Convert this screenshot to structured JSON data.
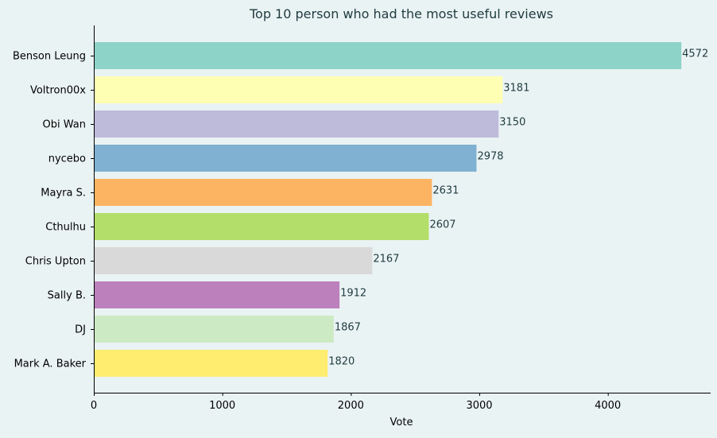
{
  "chart_data": {
    "type": "bar",
    "orientation": "horizontal",
    "title": "Top 10 person who had the most useful reviews",
    "xlabel": "Vote",
    "ylabel": "",
    "xlim": [
      0,
      4800
    ],
    "x_ticks": [
      0,
      1000,
      2000,
      3000,
      4000
    ],
    "grid": false,
    "categories": [
      "Benson Leung",
      "Voltron00x",
      "Obi Wan",
      "nycebo",
      "Mayra S.",
      "Cthulhu",
      "Chris Upton",
      "Sally B.",
      "DJ",
      "Mark A. Baker"
    ],
    "values": [
      4572,
      3181,
      3150,
      2978,
      2631,
      2607,
      2167,
      1912,
      1867,
      1820
    ],
    "colors": [
      "#8dd3c7",
      "#ffffb3",
      "#bebada",
      "#80b1d3",
      "#fdb462",
      "#b3de69",
      "#d9d9d9",
      "#bc80bd",
      "#ccebc5",
      "#ffed6f"
    ],
    "background_color": "#eaf3f4",
    "text_color": "#1f3b3f"
  }
}
